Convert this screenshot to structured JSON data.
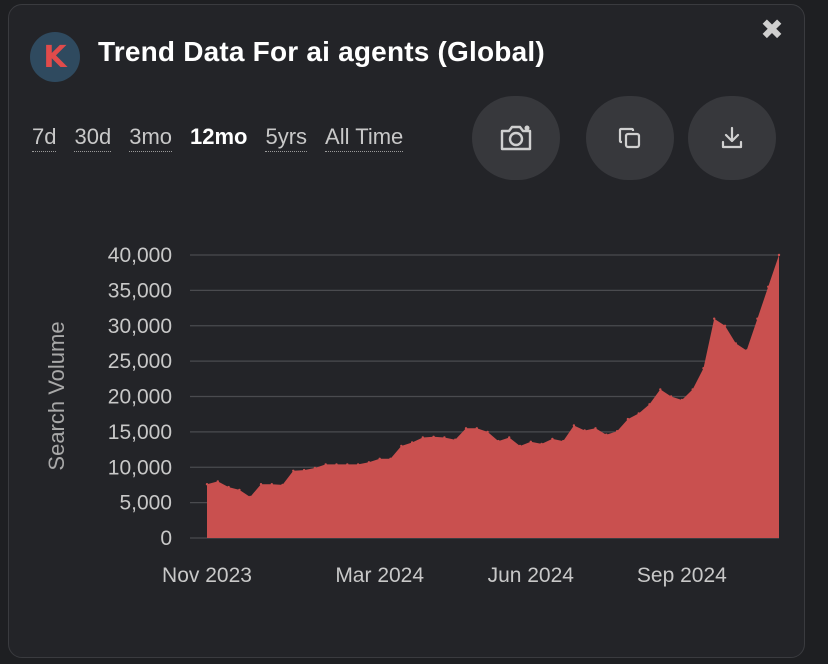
{
  "header": {
    "logo_letter": "K",
    "title": "Trend Data For ai agents (Global)",
    "close_glyph": "✖"
  },
  "ranges": [
    {
      "label": "7d",
      "active": false
    },
    {
      "label": "30d",
      "active": false
    },
    {
      "label": "3mo",
      "active": false
    },
    {
      "label": "12mo",
      "active": true
    },
    {
      "label": "5yrs",
      "active": false
    },
    {
      "label": "All Time",
      "active": false
    }
  ],
  "actions": [
    {
      "icon": "camera-icon"
    },
    {
      "icon": "copy-icon"
    },
    {
      "icon": "download-icon"
    }
  ],
  "colors": {
    "background": "#232428",
    "fill": "#c9504f",
    "accent_logo": "#e04b4b"
  },
  "chart_data": {
    "type": "area",
    "title": "",
    "xlabel": "",
    "ylabel": "Search Volume",
    "ylim": [
      0,
      40000
    ],
    "yticks": [
      0,
      5000,
      10000,
      15000,
      20000,
      25000,
      30000,
      35000,
      40000
    ],
    "ytick_labels": [
      "0",
      "5,000",
      "10,000",
      "15,000",
      "20,000",
      "25,000",
      "30,000",
      "35,000",
      "40,000"
    ],
    "xtick_labels": [
      "Nov 2023",
      "Mar 2024",
      "Jun 2024",
      "Sep 2024"
    ],
    "xtick_positions": [
      0,
      16,
      30,
      44
    ],
    "grid": true,
    "series": [
      {
        "values": [
          7600,
          8000,
          7200,
          6800,
          5800,
          7600,
          7600,
          7500,
          9500,
          9600,
          9900,
          10400,
          10400,
          10400,
          10400,
          10700,
          11200,
          11200,
          13000,
          13500,
          14200,
          14300,
          14200,
          13900,
          15500,
          15500,
          15000,
          13700,
          14200,
          13000,
          13600,
          13300,
          14000,
          13700,
          15900,
          15200,
          15500,
          14600,
          15100,
          16800,
          17600,
          18900,
          21000,
          20000,
          19500,
          21000,
          24000,
          31000,
          30000,
          27500,
          26500,
          31000,
          35500,
          40000
        ]
      }
    ]
  }
}
